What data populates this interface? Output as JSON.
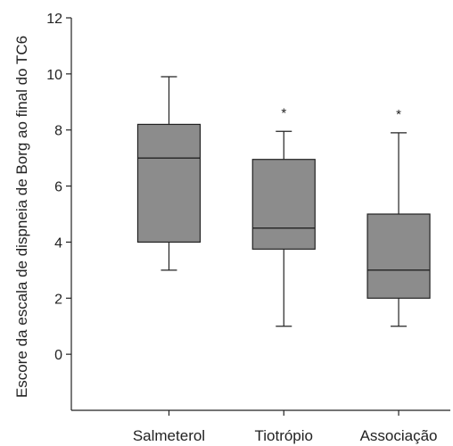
{
  "chart_data": {
    "type": "boxplot",
    "categories": [
      "Salmeterol",
      "Tiotrópio",
      "Associação"
    ],
    "ylabel": "Escore da escala de dispneia de Borg ao final do TC6",
    "xlabel": "",
    "ylim": [
      -2,
      12
    ],
    "yticks": [
      0,
      2,
      4,
      6,
      8,
      10,
      12
    ],
    "grid": false,
    "box_color": "#8c8c8c",
    "boxes": [
      {
        "category": "Salmeterol",
        "whisker_low": 3,
        "q1": 4,
        "median": 7,
        "q3": 8.2,
        "whisker_high": 9.9,
        "annotation": ""
      },
      {
        "category": "Tiotrópio",
        "whisker_low": 1,
        "q1": 3.75,
        "median": 4.5,
        "q3": 6.95,
        "whisker_high": 7.95,
        "annotation": "*"
      },
      {
        "category": "Associação",
        "whisker_low": 1,
        "q1": 2,
        "median": 3,
        "q3": 5,
        "whisker_high": 7.9,
        "annotation": "*"
      }
    ]
  }
}
